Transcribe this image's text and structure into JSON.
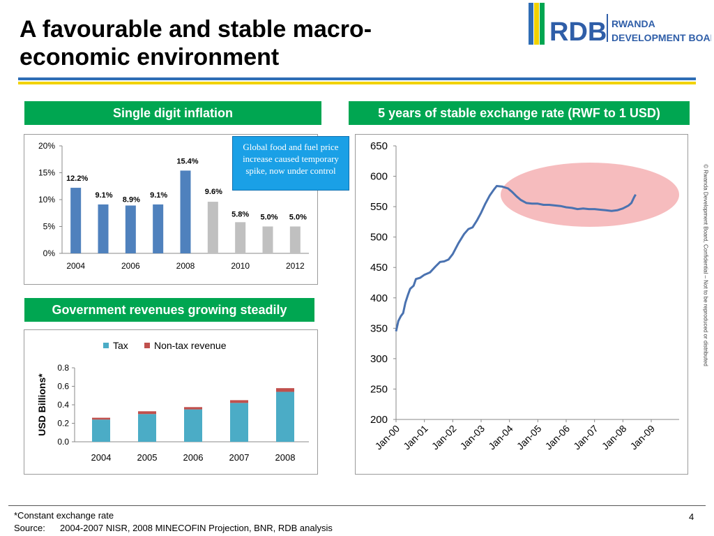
{
  "slide": {
    "title": "A favourable and stable macro-economic environment",
    "page_number": "4",
    "side_note": "© Rwanda Development Board, Confidential – Not to be reproduced or distributed",
    "footnote": "*Constant exchange rate",
    "source_label": "Source:",
    "source_text": "2004-2007 NISR, 2008 MINECOFIN Projection, BNR, RDB analysis"
  },
  "logo": {
    "abbr": "RDB",
    "line1": "RWANDA",
    "line2": "DEVELOPMENT BOARD"
  },
  "headers": {
    "inflation": "Single digit inflation",
    "exchange": "5 years of stable exchange rate (RWF to 1 USD)",
    "revenues": "Government revenues growing steadily"
  },
  "callout": {
    "text": "Global food and fuel price increase caused temporary spike, now under control"
  },
  "colors": {
    "green": "#00a651",
    "blue_bar": "#4f81bd",
    "grey_bar": "#c0c0c0",
    "tax": "#4bacc6",
    "nontax": "#c0504d",
    "line": "#4a72b0",
    "highlight": "#f6b8bb"
  },
  "chart_data": [
    {
      "type": "bar",
      "x": [
        2004,
        2005,
        2006,
        2007,
        2008,
        2009,
        2010,
        2011,
        2012
      ],
      "values": [
        12.2,
        9.1,
        8.9,
        9.1,
        15.4,
        9.6,
        5.8,
        5.0,
        5.0
      ],
      "labels": [
        "12.2%",
        "9.1%",
        "8.9%",
        "9.1%",
        "15.4%",
        "9.6%",
        "5.8%",
        "5.0%",
        "5.0%"
      ],
      "bar_colors": [
        "#4f81bd",
        "#4f81bd",
        "#4f81bd",
        "#4f81bd",
        "#4f81bd",
        "#c0c0c0",
        "#c0c0c0",
        "#c0c0c0",
        "#c0c0c0"
      ],
      "xticks": [
        "2004",
        "2006",
        "2008",
        "2010",
        "2012"
      ],
      "yticks": [
        "0%",
        "5%",
        "10%",
        "15%",
        "20%"
      ],
      "ylim": [
        0,
        20
      ]
    },
    {
      "type": "line",
      "x": [
        "Jan-00",
        "Jan-01",
        "Jan-02",
        "Jan-03",
        "Jan-04",
        "Jan-05",
        "Jan-06",
        "Jan-07",
        "Jan-08",
        "Jan-09"
      ],
      "xticks": [
        "Jan-00",
        "Jan-01",
        "Jan-02",
        "Jan-03",
        "Jan-04",
        "Jan-05",
        "Jan-06",
        "Jan-07",
        "Jan-08",
        "Jan-09"
      ],
      "yticks": [
        "200",
        "250",
        "300",
        "350",
        "400",
        "450",
        "500",
        "550",
        "600",
        "650"
      ],
      "ylim": [
        200,
        650
      ],
      "series": [
        {
          "values": [
            [
              0,
              345
            ],
            [
              0.08,
              362
            ],
            [
              0.17,
              370
            ],
            [
              0.25,
              375
            ],
            [
              0.33,
              392
            ],
            [
              0.42,
              405
            ],
            [
              0.5,
              415
            ],
            [
              0.62,
              420
            ],
            [
              0.7,
              431
            ],
            [
              0.85,
              433
            ],
            [
              1.0,
              438
            ],
            [
              1.2,
              442
            ],
            [
              1.4,
              452
            ],
            [
              1.55,
              459
            ],
            [
              1.7,
              460
            ],
            [
              1.85,
              463
            ],
            [
              2.0,
              472
            ],
            [
              2.2,
              490
            ],
            [
              2.4,
              505
            ],
            [
              2.55,
              513
            ],
            [
              2.7,
              516
            ],
            [
              2.85,
              527
            ],
            [
              3.0,
              540
            ],
            [
              3.15,
              555
            ],
            [
              3.3,
              568
            ],
            [
              3.45,
              578
            ],
            [
              3.55,
              584
            ],
            [
              3.75,
              583
            ],
            [
              3.95,
              580
            ],
            [
              4.1,
              574
            ],
            [
              4.25,
              567
            ],
            [
              4.4,
              561
            ],
            [
              4.6,
              556
            ],
            [
              4.8,
              555
            ],
            [
              5.0,
              555
            ],
            [
              5.2,
              553
            ],
            [
              5.4,
              553
            ],
            [
              5.6,
              552
            ],
            [
              5.8,
              551
            ],
            [
              6.0,
              549
            ],
            [
              6.2,
              548
            ],
            [
              6.4,
              546
            ],
            [
              6.6,
              547
            ],
            [
              6.8,
              546
            ],
            [
              7.0,
              546
            ],
            [
              7.2,
              545
            ],
            [
              7.4,
              544
            ],
            [
              7.6,
              543
            ],
            [
              7.8,
              544
            ],
            [
              8.0,
              547
            ],
            [
              8.2,
              552
            ],
            [
              8.3,
              556
            ],
            [
              8.4,
              566
            ],
            [
              8.45,
              570
            ]
          ]
        }
      ]
    },
    {
      "type": "bar",
      "stacked": true,
      "categories": [
        "2004",
        "2005",
        "2006",
        "2007",
        "2008"
      ],
      "series": [
        {
          "name": "Tax",
          "values": [
            0.24,
            0.3,
            0.35,
            0.42,
            0.54
          ],
          "color": "#4bacc6"
        },
        {
          "name": "Non-tax revenue",
          "values": [
            0.02,
            0.03,
            0.025,
            0.03,
            0.04
          ],
          "color": "#c0504d"
        }
      ],
      "ylabel": "USD Billions*",
      "yticks": [
        "0.0",
        "0.2",
        "0.4",
        "0.6",
        "0.8"
      ],
      "ylim": [
        0,
        0.8
      ]
    }
  ]
}
